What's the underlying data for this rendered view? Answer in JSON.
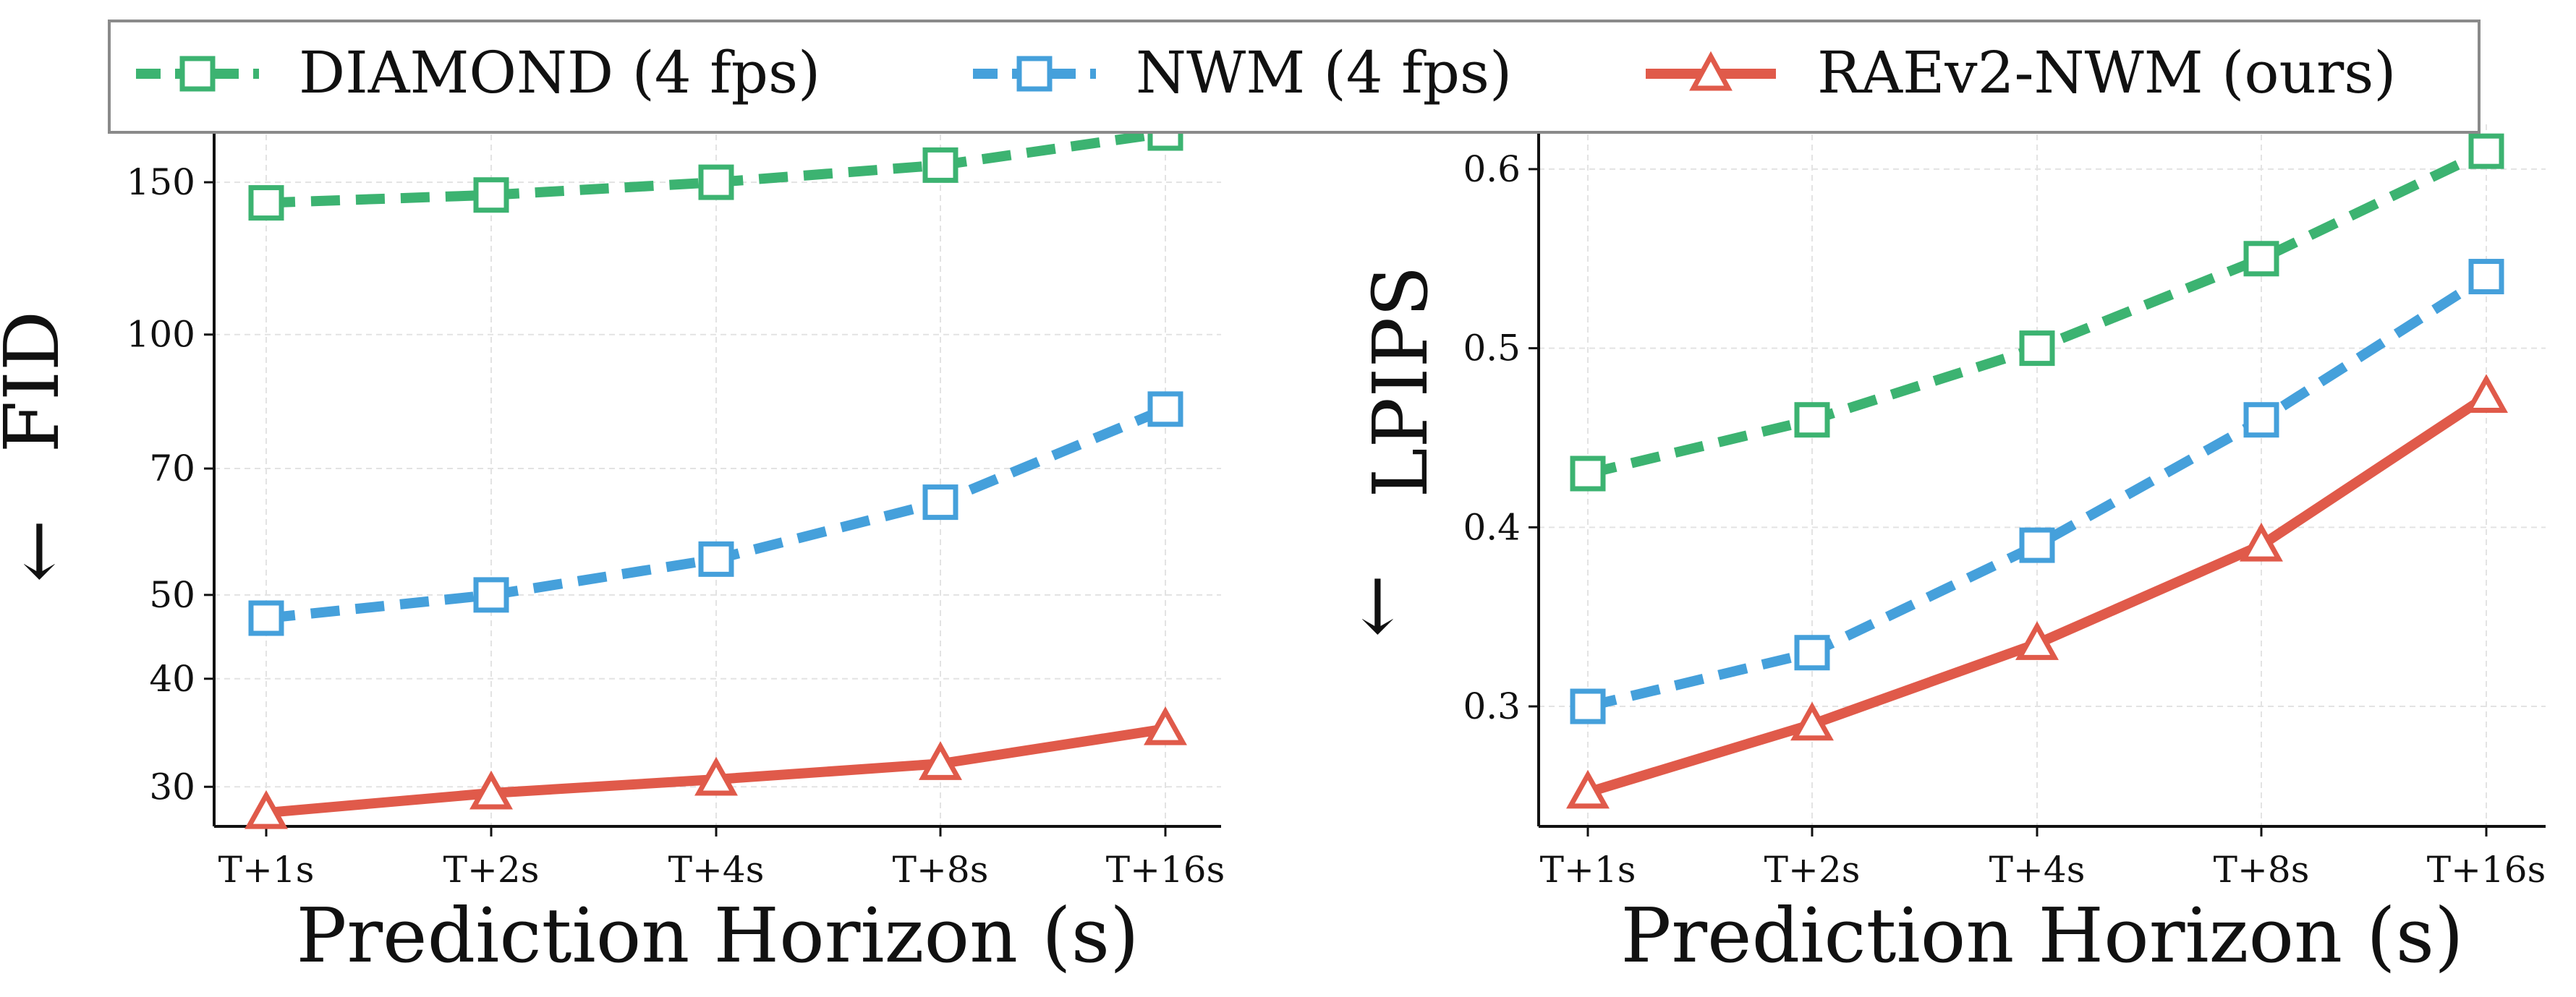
{
  "chart_data": [
    {
      "type": "line",
      "categories": [
        "T+1s",
        "T+2s",
        "T+4s",
        "T+8s",
        "T+16s"
      ],
      "xlabel": "Prediction Horizon (s)",
      "ylabel": "FID",
      "direction_marker": "←",
      "yscale": "log",
      "ylim": [
        27,
        175
      ],
      "yticks": [
        30,
        40,
        50,
        70,
        100,
        150
      ],
      "grid": true,
      "series": [
        {
          "name": "DIAMOND (4 fps)",
          "marker": "square",
          "linestyle": "dashed",
          "values": [
            142,
            145,
            150,
            157,
            171
          ]
        },
        {
          "name": "NWM (4 fps)",
          "marker": "square",
          "linestyle": "dashed",
          "values": [
            47,
            50,
            55,
            64,
            82
          ]
        },
        {
          "name": "RAEv2-NWM (ours)",
          "marker": "triangle",
          "linestyle": "solid",
          "values": [
            28,
            29.5,
            30.6,
            31.9,
            35
          ]
        }
      ]
    },
    {
      "type": "line",
      "categories": [
        "T+1s",
        "T+2s",
        "T+4s",
        "T+8s",
        "T+16s"
      ],
      "xlabel": "Prediction Horizon (s)",
      "ylabel": "LPIPS",
      "direction_marker": "←",
      "ylim": [
        0.233,
        0.625
      ],
      "yticks": [
        0.3,
        0.4,
        0.5,
        0.6
      ],
      "grid": true,
      "series": [
        {
          "name": "DIAMOND (4 fps)",
          "marker": "square",
          "linestyle": "dashed",
          "values": [
            0.43,
            0.46,
            0.5,
            0.55,
            0.61
          ]
        },
        {
          "name": "NWM (4 fps)",
          "marker": "square",
          "linestyle": "dashed",
          "values": [
            0.3,
            0.33,
            0.39,
            0.46,
            0.54
          ]
        },
        {
          "name": "RAEv2-NWM (ours)",
          "marker": "triangle",
          "linestyle": "solid",
          "values": [
            0.252,
            0.29,
            0.335,
            0.39,
            0.473
          ]
        }
      ]
    }
  ],
  "legend": {
    "position": "top-center",
    "items": [
      {
        "label": "DIAMOND (4 fps)",
        "color": "#3cb371",
        "marker": "square",
        "linestyle": "dashed"
      },
      {
        "label": "NWM (4 fps)",
        "color": "#45a0db",
        "marker": "square",
        "linestyle": "dashed"
      },
      {
        "label": "RAEv2-NWM (ours)",
        "color": "#e05a4a",
        "marker": "triangle",
        "linestyle": "solid"
      }
    ]
  },
  "colors": {
    "diamond": "#3cb371",
    "nwm": "#45a0db",
    "raev2": "#e05a4a",
    "grid": "#e3e3e3",
    "axis": "#111111"
  }
}
